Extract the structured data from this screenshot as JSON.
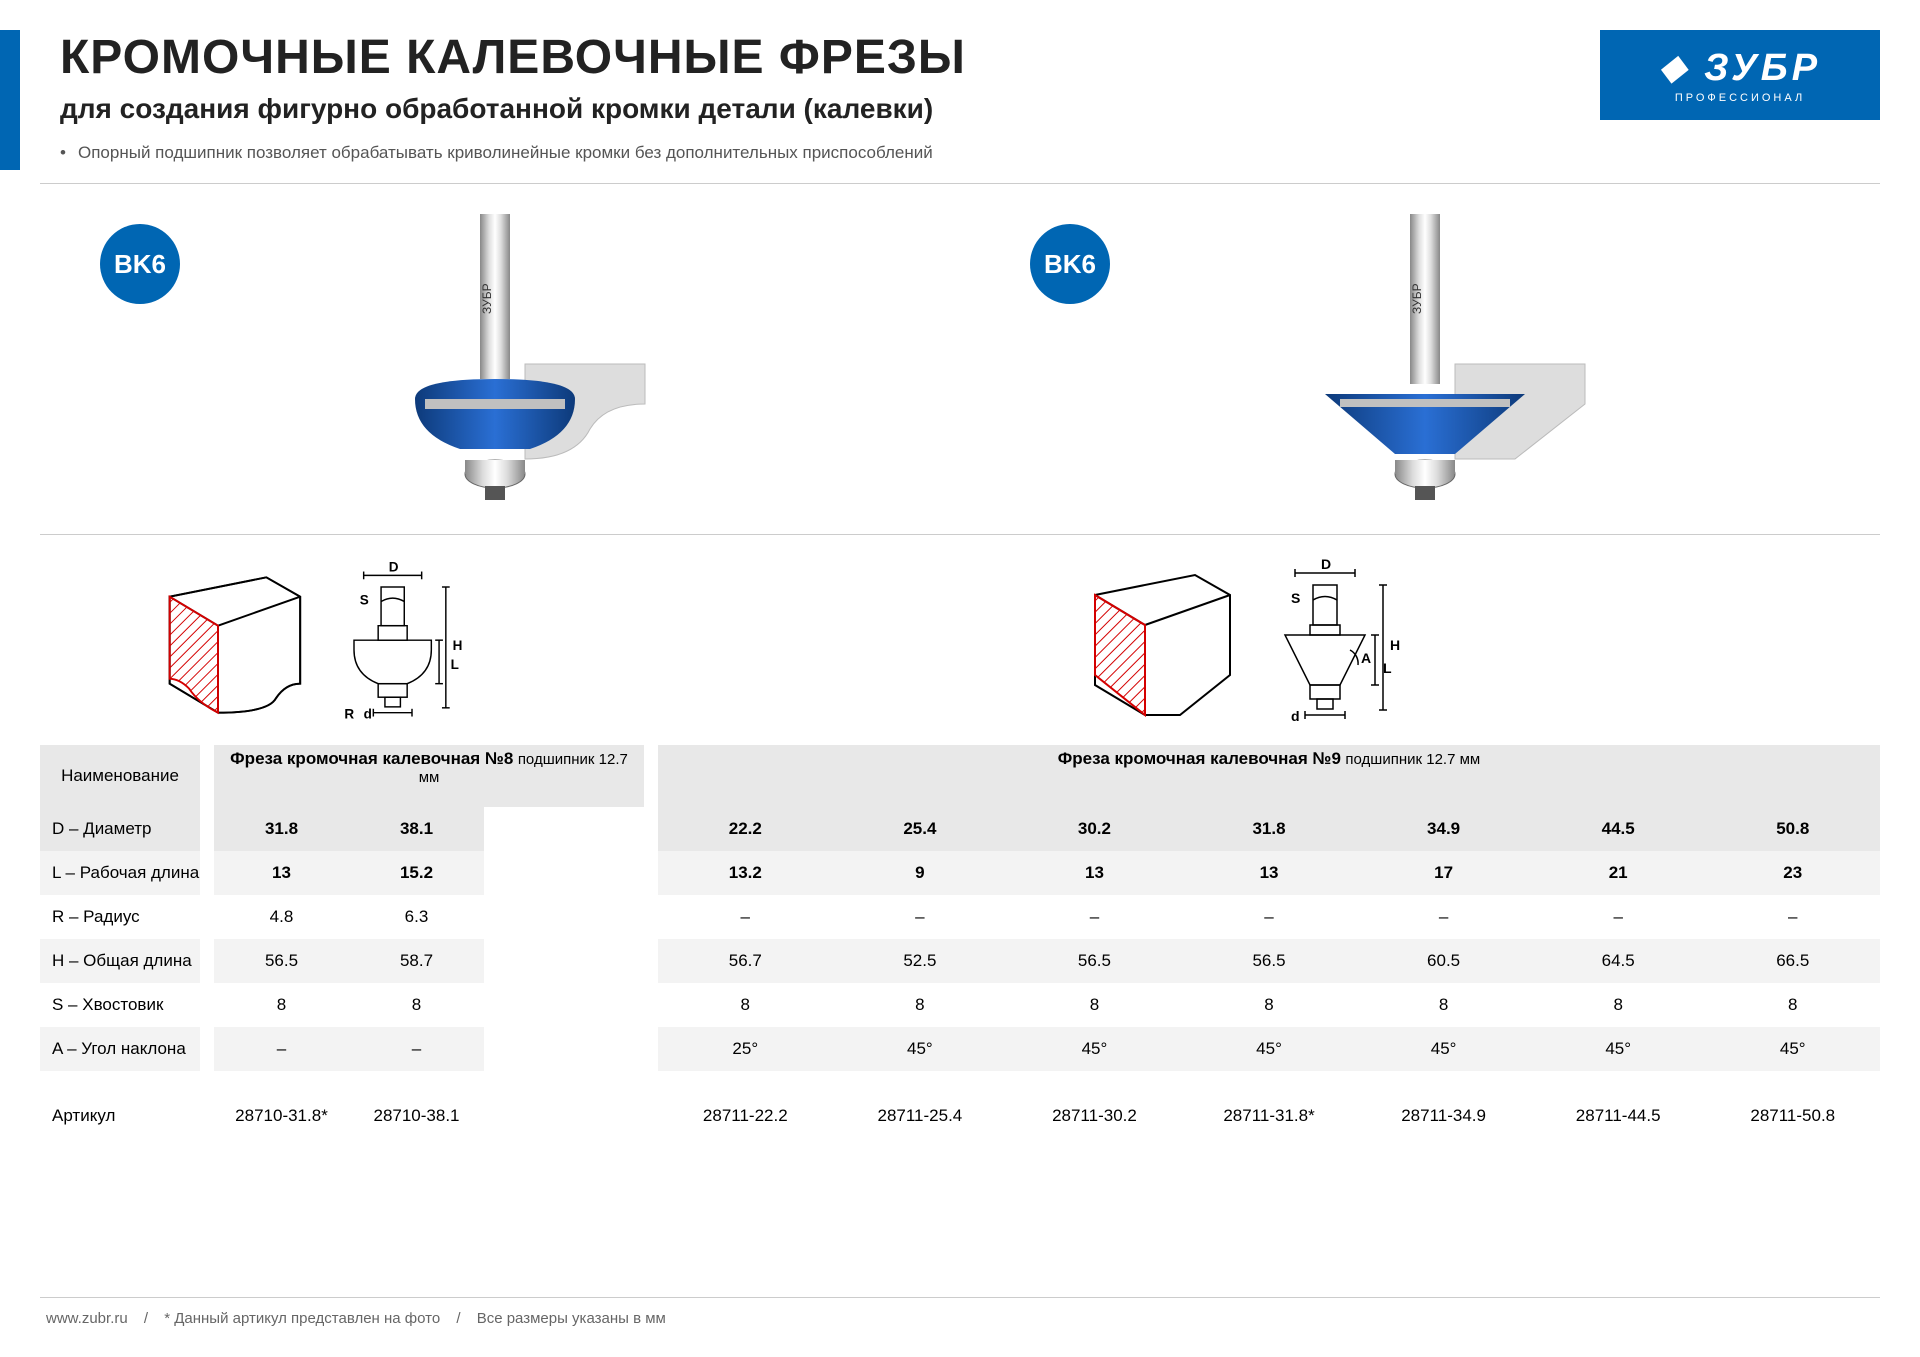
{
  "header": {
    "title": "КРОМОЧНЫЕ КАЛЕВОЧНЫЕ ФРЕЗЫ",
    "subtitle": "для создания фигурно обработанной кромки детали (калевки)",
    "bullet": "Опорный подшипник позволяет обрабатывать криволинейные кромки без дополнительных приспособлений"
  },
  "logo": {
    "brand": "⬥ ЗУБР",
    "sub": "ПРОФЕССИОНАЛ"
  },
  "badge": "BK6",
  "colors": {
    "accent": "#0066b3",
    "tool_body": "#1a5fb4",
    "tool_steel": "#b0b0b0",
    "profile_stroke": "#d40000",
    "header_gray": "#e8e8e8",
    "row_gray": "#f3f3f3"
  },
  "row_labels": {
    "name": "Наименование",
    "d": "D – Диаметр",
    "l": "L – Рабочая длина",
    "r": "R – Радиус",
    "h": "H – Общая длина",
    "s": "S – Хвостовик",
    "a": "A – Угол наклона",
    "art": "Артикул"
  },
  "table1": {
    "title": "Фреза кромочная калевочная №8",
    "subtitle": "подшипник 12.7 мм",
    "cols": [
      {
        "d": "31.8",
        "l": "13",
        "r": "4.8",
        "h": "56.5",
        "s": "8",
        "a": "–",
        "art": "28710-31.8*"
      },
      {
        "d": "38.1",
        "l": "15.2",
        "r": "6.3",
        "h": "58.7",
        "s": "8",
        "a": "–",
        "art": "28710-38.1"
      }
    ]
  },
  "table2": {
    "title": "Фреза кромочная калевочная №9",
    "subtitle": "подшипник 12.7 мм",
    "cols": [
      {
        "d": "22.2",
        "l": "13.2",
        "r": "–",
        "h": "56.7",
        "s": "8",
        "a": "25°",
        "art": "28711-22.2"
      },
      {
        "d": "25.4",
        "l": "9",
        "r": "–",
        "h": "52.5",
        "s": "8",
        "a": "45°",
        "art": "28711-25.4"
      },
      {
        "d": "30.2",
        "l": "13",
        "r": "–",
        "h": "56.5",
        "s": "8",
        "a": "45°",
        "art": "28711-30.2"
      },
      {
        "d": "31.8",
        "l": "13",
        "r": "–",
        "h": "56.5",
        "s": "8",
        "a": "45°",
        "art": "28711-31.8*"
      },
      {
        "d": "34.9",
        "l": "17",
        "r": "–",
        "h": "60.5",
        "s": "8",
        "a": "45°",
        "art": "28711-34.9"
      },
      {
        "d": "44.5",
        "l": "21",
        "r": "–",
        "h": "64.5",
        "s": "8",
        "a": "45°",
        "art": "28711-44.5"
      },
      {
        "d": "50.8",
        "l": "23",
        "r": "–",
        "h": "66.5",
        "s": "8",
        "a": "45°",
        "art": "28711-50.8"
      }
    ]
  },
  "dim_labels": {
    "D": "D",
    "S": "S",
    "H": "H",
    "L": "L",
    "R": "R",
    "d_small": "d",
    "A": "A"
  },
  "footer": {
    "url": "www.zubr.ru",
    "note1": "* Данный артикул представлен на фото",
    "note2": "Все размеры указаны в мм",
    "sep": "/"
  }
}
